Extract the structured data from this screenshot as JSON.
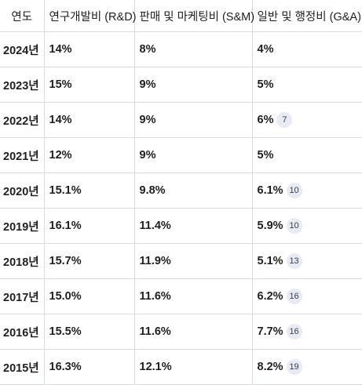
{
  "table": {
    "headers": {
      "year": "연도",
      "rnd": "연구개발비 (R&D)",
      "snm": "판매 및 마케팅비 (S&M)",
      "gna": "일반 및 행정비 (G&A)"
    },
    "rows": [
      {
        "year": "2024년",
        "rnd": "14%",
        "snm": "8%",
        "gna": "4%",
        "cite": ""
      },
      {
        "year": "2023년",
        "rnd": "15%",
        "snm": "9%",
        "gna": "5%",
        "cite": ""
      },
      {
        "year": "2022년",
        "rnd": "14%",
        "snm": "9%",
        "gna": "6%",
        "cite": "7"
      },
      {
        "year": "2021년",
        "rnd": "12%",
        "snm": "9%",
        "gna": "5%",
        "cite": ""
      },
      {
        "year": "2020년",
        "rnd": "15.1%",
        "snm": "9.8%",
        "gna": "6.1%",
        "cite": "10"
      },
      {
        "year": "2019년",
        "rnd": "16.1%",
        "snm": "11.4%",
        "gna": "5.9%",
        "cite": "10"
      },
      {
        "year": "2018년",
        "rnd": "15.7%",
        "snm": "11.9%",
        "gna": "5.1%",
        "cite": "13"
      },
      {
        "year": "2017년",
        "rnd": "15.0%",
        "snm": "11.6%",
        "gna": "6.2%",
        "cite": "16"
      },
      {
        "year": "2016년",
        "rnd": "15.5%",
        "snm": "11.6%",
        "gna": "7.7%",
        "cite": "16"
      },
      {
        "year": "2015년",
        "rnd": "16.3%",
        "snm": "12.1%",
        "gna": "8.2%",
        "cite": "19"
      }
    ]
  }
}
